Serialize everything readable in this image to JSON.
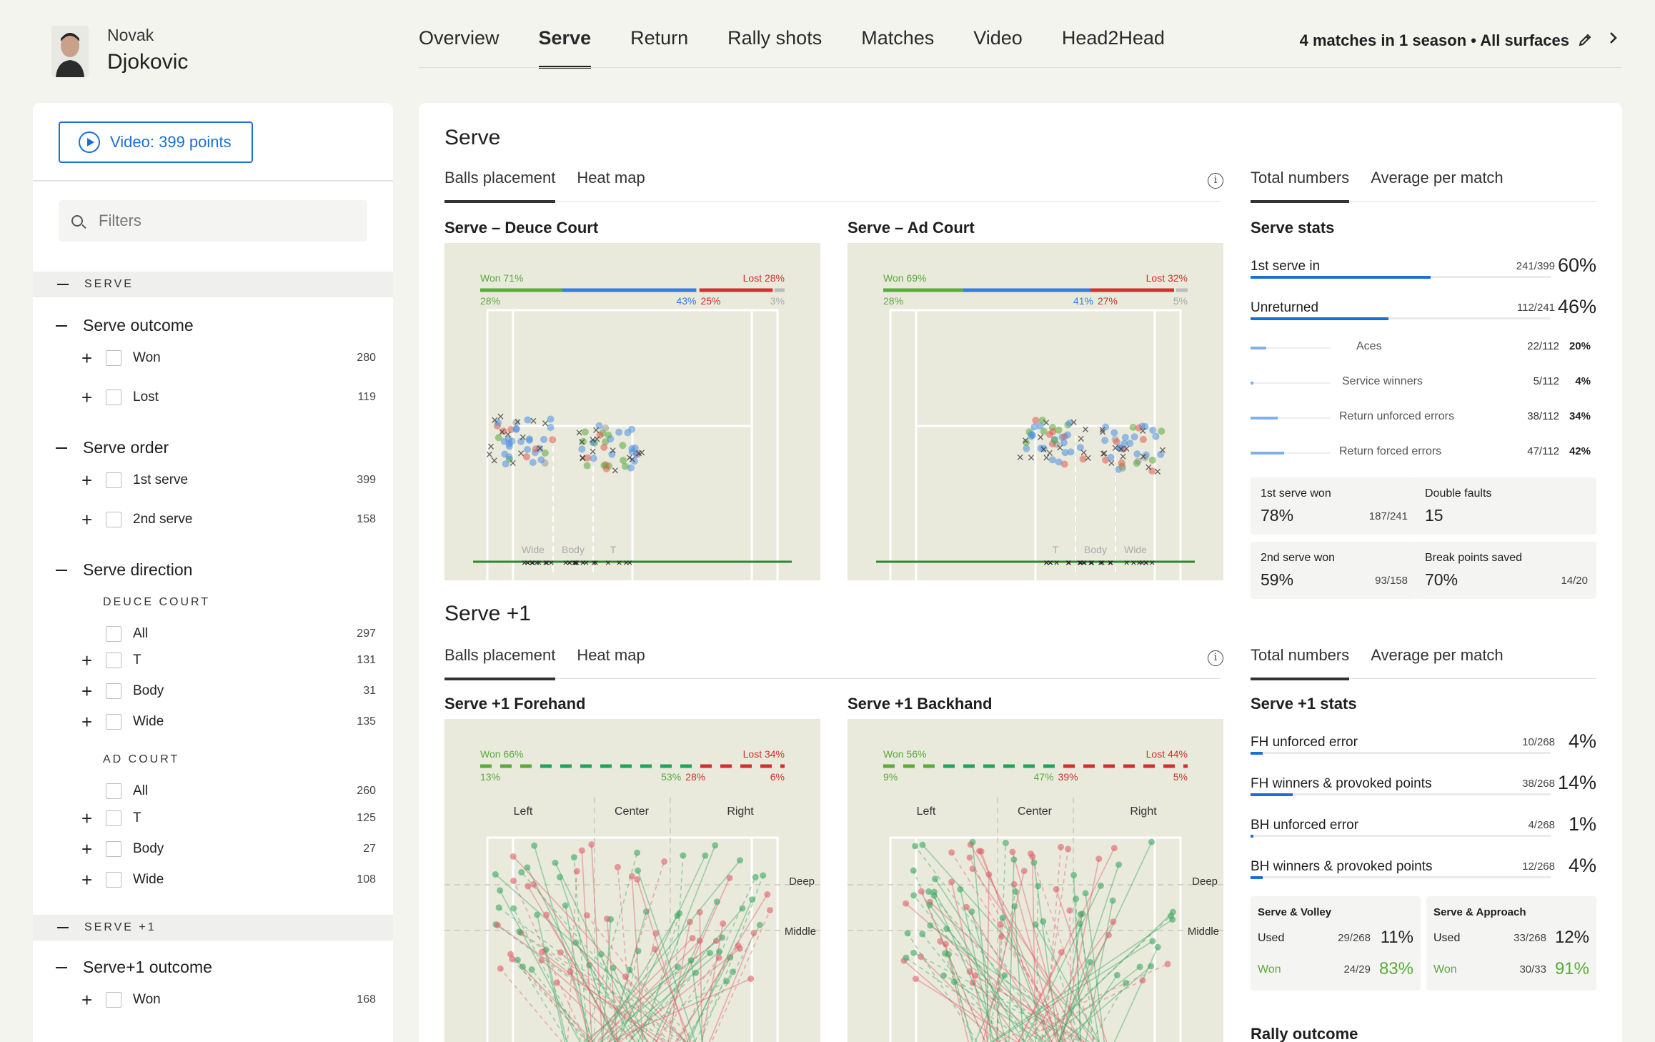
{
  "player": {
    "first_name": "Novak",
    "last_name": "Djokovic"
  },
  "nav": {
    "tabs": [
      "Overview",
      "Serve",
      "Return",
      "Rally shots",
      "Matches",
      "Video",
      "Head2Head"
    ],
    "active": "Serve",
    "season_filter": "4 matches in 1 season • All surfaces"
  },
  "sidebar": {
    "video_button": "Video: 399 points",
    "filter_placeholder": "Filters",
    "sections": {
      "serve": "SERVE",
      "serve_plus1": "SERVE +1"
    },
    "serve_outcome": {
      "title": "Serve outcome",
      "items": [
        {
          "label": "Won",
          "count": "280"
        },
        {
          "label": "Lost",
          "count": "119"
        }
      ]
    },
    "serve_order": {
      "title": "Serve order",
      "items": [
        {
          "label": "1st serve",
          "count": "399"
        },
        {
          "label": "2nd serve",
          "count": "158"
        }
      ]
    },
    "serve_direction": {
      "title": "Serve direction",
      "deuce_label": "DEUCE COURT",
      "deuce": [
        {
          "label": "All",
          "count": "297"
        },
        {
          "label": "T",
          "count": "131"
        },
        {
          "label": "Body",
          "count": "31"
        },
        {
          "label": "Wide",
          "count": "135"
        }
      ],
      "ad_label": "AD COURT",
      "ad": [
        {
          "label": "All",
          "count": "260"
        },
        {
          "label": "T",
          "count": "125"
        },
        {
          "label": "Body",
          "count": "27"
        },
        {
          "label": "Wide",
          "count": "108"
        }
      ]
    },
    "serve_plus1_outcome": {
      "title": "Serve+1 outcome",
      "items": [
        {
          "label": "Won",
          "count": "168"
        }
      ]
    }
  },
  "serve": {
    "title": "Serve",
    "tabs": [
      "Balls placement",
      "Heat map"
    ],
    "stat_tabs": [
      "Total numbers",
      "Average per match"
    ],
    "deuce": {
      "title": "Serve – Deuce Court",
      "won_label": "Won 71%",
      "lost_label": "Lost 28%",
      "won_pct": 71,
      "lost_pct": 28,
      "left_pct": "28%",
      "mid_pct": "43%",
      "lost_sub_pct": "25%",
      "right_pct": "3%",
      "zones": [
        "Wide",
        "Body",
        "T"
      ]
    },
    "ad": {
      "title": "Serve – Ad Court",
      "won_label": "Won 69%",
      "lost_label": "Lost 32%",
      "won_pct": 69,
      "lost_pct": 32,
      "left_pct": "28%",
      "mid_pct": "41%",
      "lost_sub_pct": "27%",
      "right_pct": "5%",
      "zones": [
        "T",
        "Body",
        "Wide"
      ]
    },
    "stats": {
      "heading": "Serve stats",
      "first_serve_in": {
        "label": "1st serve in",
        "frac": "241/399",
        "pct": "60%",
        "value": 60
      },
      "unreturned": {
        "label": "Unreturned",
        "frac": "112/241",
        "pct": "46%",
        "value": 46
      },
      "sub": [
        {
          "label": "Aces",
          "frac": "22/112",
          "pct": "20%",
          "value": 20
        },
        {
          "label": "Service winners",
          "frac": "5/112",
          "pct": "4%",
          "value": 4
        },
        {
          "label": "Return unforced errors",
          "frac": "38/112",
          "pct": "34%",
          "value": 34
        },
        {
          "label": "Return forced errors",
          "frac": "47/112",
          "pct": "42%",
          "value": 42
        }
      ],
      "cards": [
        {
          "label": "1st serve won",
          "value": "78%",
          "frac": "187/241"
        },
        {
          "label": "Double faults",
          "value": "15",
          "frac": ""
        },
        {
          "label": "2nd serve won",
          "value": "59%",
          "frac": "93/158"
        },
        {
          "label": "Break points saved",
          "value": "70%",
          "frac": "14/20"
        }
      ]
    }
  },
  "serve_plus1": {
    "title": "Serve +1",
    "tabs": [
      "Balls placement",
      "Heat map"
    ],
    "stat_tabs": [
      "Total numbers",
      "Average per match"
    ],
    "forehand": {
      "title": "Serve +1 Forehand",
      "won_label": "Won 66%",
      "lost_label": "Lost 34%",
      "won_pct": 66,
      "lost_pct": 34,
      "left_pct": "13%",
      "mid_pct": "53%",
      "lost_sub_pct": "28%",
      "right_pct": "6%",
      "zones": [
        "Left",
        "Center",
        "Right"
      ],
      "depth": [
        "Deep",
        "Middle"
      ]
    },
    "backhand": {
      "title": "Serve +1 Backhand",
      "won_label": "Won 56%",
      "lost_label": "Lost 44%",
      "won_pct": 56,
      "lost_pct": 44,
      "left_pct": "9%",
      "mid_pct": "47%",
      "lost_sub_pct": "39%",
      "right_pct": "5%",
      "zones": [
        "Left",
        "Center",
        "Right"
      ],
      "depth": [
        "Deep",
        "Middle"
      ]
    },
    "stats": {
      "heading": "Serve +1 stats",
      "rows": [
        {
          "label": "FH unforced error",
          "frac": "10/268",
          "pct": "4%",
          "value": 4
        },
        {
          "label": "FH winners & provoked points",
          "frac": "38/268",
          "pct": "14%",
          "value": 14
        },
        {
          "label": "BH unforced error",
          "frac": "4/268",
          "pct": "1%",
          "value": 1
        },
        {
          "label": "BH winners & provoked points",
          "frac": "12/268",
          "pct": "4%",
          "value": 4
        }
      ],
      "cards": [
        {
          "title": "Serve & Volley",
          "used_label": "Used",
          "used_frac": "29/268",
          "used_pct": "11%",
          "won_label": "Won",
          "won_frac": "24/29",
          "won_pct": "83%"
        },
        {
          "title": "Serve & Approach",
          "used_label": "Used",
          "used_frac": "33/268",
          "used_pct": "12%",
          "won_label": "Won",
          "won_frac": "30/33",
          "won_pct": "91%"
        }
      ],
      "rally_heading": "Rally outcome"
    }
  },
  "colors": {
    "accent": "#1a6fd6",
    "won": "#5aaa3c",
    "lost": "#d0312d",
    "court": "#e9e9dc"
  },
  "icons": {
    "play": "play-circle-icon",
    "search": "search-icon",
    "info": "info-icon",
    "edit": "edit-icon",
    "next": "chevron-right-icon"
  }
}
